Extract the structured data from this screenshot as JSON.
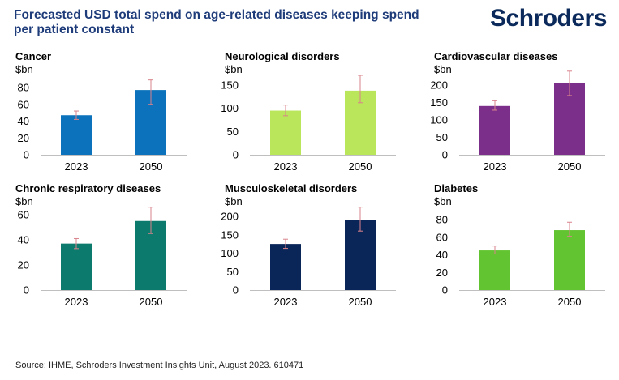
{
  "header": {
    "title": "Forecasted USD total spend on age-related diseases keeping spend per patient constant",
    "logo_text": "Schroders"
  },
  "footer": {
    "source": "Source: IHME, Schroders Investment Insights Unit, August 2023. 610471"
  },
  "colors": {
    "title": "#1f3c7a",
    "logo": "#0b2a5b",
    "error_bar": "#d9838b",
    "axis": "#bfbfbf"
  },
  "chart_data": [
    {
      "type": "bar",
      "title": "Cancer",
      "unit": "$bn",
      "categories": [
        "2023",
        "2050"
      ],
      "values": [
        47,
        77
      ],
      "error_low": [
        42,
        60
      ],
      "error_high": [
        52,
        89
      ],
      "ylim": [
        0,
        80
      ],
      "yticks": [
        0,
        20,
        40,
        60,
        80
      ],
      "color": "#0c72bb"
    },
    {
      "type": "bar",
      "title": "Neurological disorders",
      "unit": "$bn",
      "categories": [
        "2023",
        "2050"
      ],
      "values": [
        95,
        138
      ],
      "error_low": [
        84,
        112
      ],
      "error_high": [
        107,
        171
      ],
      "ylim": [
        0,
        150
      ],
      "yticks": [
        0,
        50,
        100,
        150
      ],
      "color": "#b9e65a"
    },
    {
      "type": "bar",
      "title": "Cardiovascular diseases",
      "unit": "$bn",
      "categories": [
        "2023",
        "2050"
      ],
      "values": [
        140,
        207
      ],
      "error_low": [
        128,
        170
      ],
      "error_high": [
        155,
        240
      ],
      "ylim": [
        0,
        200
      ],
      "yticks": [
        0,
        50,
        100,
        150,
        200
      ],
      "color": "#7b2f8b"
    },
    {
      "type": "bar",
      "title": "Chronic respiratory diseases",
      "unit": "$bn",
      "categories": [
        "2023",
        "2050"
      ],
      "values": [
        37,
        55
      ],
      "error_low": [
        33,
        45
      ],
      "error_high": [
        41,
        66
      ],
      "ylim": [
        0,
        60
      ],
      "yticks": [
        0,
        20,
        40,
        60
      ],
      "color": "#0c7a6c"
    },
    {
      "type": "bar",
      "title": "Musculoskeletal disorders",
      "unit": "$bn",
      "categories": [
        "2023",
        "2050"
      ],
      "values": [
        125,
        190
      ],
      "error_low": [
        113,
        160
      ],
      "error_high": [
        138,
        225
      ],
      "ylim": [
        0,
        200
      ],
      "yticks": [
        0,
        50,
        100,
        150,
        200
      ],
      "color": "#0a2558"
    },
    {
      "type": "bar",
      "title": "Diabetes",
      "unit": "$bn",
      "categories": [
        "2023",
        "2050"
      ],
      "values": [
        45,
        68
      ],
      "error_low": [
        41,
        61
      ],
      "error_high": [
        50,
        77
      ],
      "ylim": [
        0,
        80
      ],
      "yticks": [
        0,
        20,
        40,
        60,
        80
      ],
      "color": "#62c430"
    }
  ]
}
